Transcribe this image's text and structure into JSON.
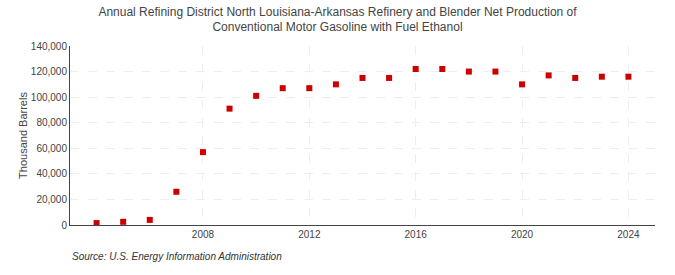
{
  "chart_data": {
    "type": "scatter",
    "title": "Annual Refining District North Louisiana-Arkansas Refinery and Blender Net Production of\nConventional Motor Gasoline with Fuel Ethanol",
    "ylabel": "Thousand Barrels",
    "annotations": [
      "Source: U.S. Energy Information Administration"
    ],
    "x": [
      2004,
      2005,
      2006,
      2007,
      2008,
      2009,
      2010,
      2011,
      2012,
      2013,
      2014,
      2015,
      2016,
      2017,
      2018,
      2019,
      2020,
      2021,
      2022,
      2023,
      2024
    ],
    "values": [
      1500,
      2500,
      4000,
      26000,
      57000,
      91000,
      101000,
      107000,
      107000,
      110000,
      115000,
      115000,
      122000,
      122000,
      120000,
      120000,
      110000,
      117000,
      115000,
      116000,
      116000
    ],
    "color": "#cc0000",
    "marker": "square",
    "xlim": [
      2003,
      2025
    ],
    "xticks": [
      2008,
      2012,
      2016,
      2020,
      2024
    ],
    "ylim": [
      0,
      140000
    ],
    "yticks": [
      0,
      {
        "value": 20000,
        "label": "20,000"
      },
      {
        "value": 40000,
        "label": "40,000"
      },
      {
        "value": 60000,
        "label": "60,000"
      },
      {
        "value": 80000,
        "label": "80,000"
      },
      {
        "value": 100000,
        "label": "100,000"
      },
      {
        "value": 120000,
        "label": "120,000"
      },
      {
        "value": 140000,
        "label": "140,000"
      }
    ],
    "grid": true
  }
}
